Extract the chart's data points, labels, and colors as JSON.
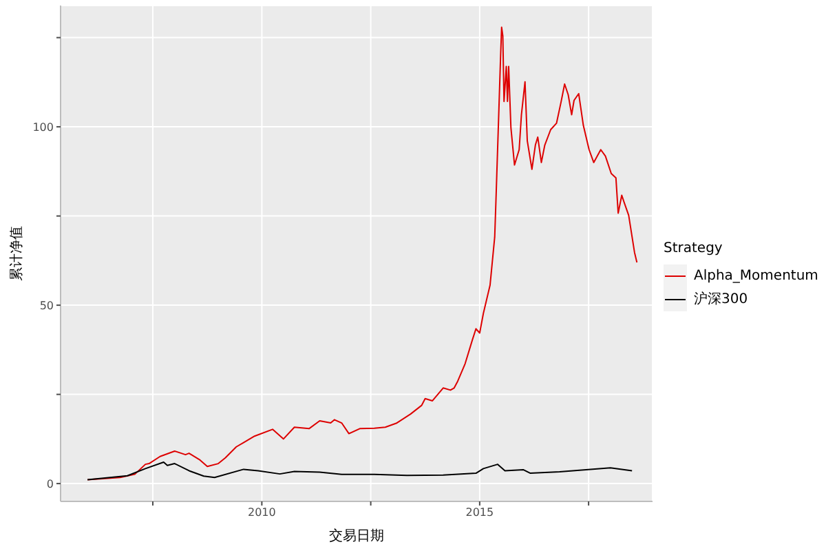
{
  "chart_data": {
    "type": "line",
    "xlabel": "交易日期",
    "ylabel": "累计净值",
    "legend_title": "Strategy",
    "legend": "right",
    "grid": true,
    "xlim": [
      "2005-05-20",
      "2018-12-20"
    ],
    "xticks": [
      {
        "value": "2007-07-02",
        "label": null
      },
      {
        "value": "2010",
        "label": "2010"
      },
      {
        "value": "2012-07-02",
        "label": null
      },
      {
        "value": "2015",
        "label": "2015"
      },
      {
        "value": "2017-07-02",
        "label": null
      }
    ],
    "ylim": [
      -5,
      134
    ],
    "yticks": [
      0,
      {
        "value": 25,
        "label": null
      },
      50,
      {
        "value": 75,
        "label": null
      },
      100,
      {
        "value": 125,
        "label": null
      }
    ],
    "series": [
      {
        "name": "Alpha_Momentum",
        "color": "#dd0000",
        "x": [
          "2006-01",
          "2006-10",
          "2007-02",
          "2007-05",
          "2007-06",
          "2007-09",
          "2008-01",
          "2008-04",
          "2008-05",
          "2008-08",
          "2008-10",
          "2009-01",
          "2009-03",
          "2009-06",
          "2009-08",
          "2009-11",
          "2010-04",
          "2010-07",
          "2010-10",
          "2011-02",
          "2011-05",
          "2011-08",
          "2011-09",
          "2011-11",
          "2012-01",
          "2012-04",
          "2012-08",
          "2012-11",
          "2013-02",
          "2013-06",
          "2013-09",
          "2013-10",
          "2013-12",
          "2014-03",
          "2014-05",
          "2014-06",
          "2014-07",
          "2014-09",
          "2014-11",
          "2014-12",
          "2015-01",
          "2015-02",
          "2015-03-29",
          "2015-05-07",
          "2015-05-17",
          "2015-06-05",
          "2015-06-25",
          "2015-07-04",
          "2015-07-14",
          "2015-07-24",
          "2015-08-12",
          "2015-08-22",
          "2015-09-01",
          "2015-09-20",
          "2015-10-20",
          "2015-11-28",
          "2015-12-17",
          "2016-01-16",
          "2016-02-04",
          "2016-03-14",
          "2016-04-12",
          "2016-05-02",
          "2016-06-01",
          "2016-06-30",
          "2016-08-18",
          "2016-10-06",
          "2016-11-14",
          "2016-12-13",
          "2017-01-12",
          "2017-02-10",
          "2017-03-02",
          "2017-04-10",
          "2017-05-19",
          "2017-07-06",
          "2017-08-14",
          "2017-10-12",
          "2017-11-20",
          "2018-01-08",
          "2018-02-16",
          "2018-03-07",
          "2018-04-06",
          "2018-04-25",
          "2018-06-03",
          "2018-07-22",
          "2018-08-11"
        ],
        "values": [
          1.1,
          1.7,
          2.6,
          5.4,
          5.6,
          7.6,
          9.1,
          8.1,
          8.5,
          6.6,
          4.8,
          5.6,
          7.2,
          10.3,
          11.5,
          13.3,
          15.2,
          12.5,
          15.8,
          15.4,
          17.6,
          17.0,
          17.9,
          17.0,
          14.0,
          15.4,
          15.5,
          15.8,
          16.9,
          19.5,
          21.9,
          23.8,
          23.2,
          26.8,
          26.2,
          26.8,
          28.7,
          33.6,
          40.3,
          43.4,
          42.2,
          47.7,
          55.6,
          69.1,
          78.9,
          98.5,
          119.4,
          127.9,
          125.5,
          107.1,
          116.9,
          107.1,
          116.9,
          99.7,
          89.3,
          93.6,
          103.4,
          112.6,
          96.1,
          88.1,
          94.9,
          97.1,
          90.0,
          94.9,
          99.2,
          101.0,
          107.1,
          112.0,
          109.0,
          103.4,
          107.4,
          109.3,
          100.4,
          93.6,
          90.0,
          93.6,
          91.8,
          86.9,
          85.7,
          75.8,
          80.8,
          78.9,
          75.2,
          64.8,
          62.0
        ]
      },
      {
        "name": "沪深300",
        "color": "#000000",
        "x": [
          "2006-01",
          "2006-12",
          "2007-05",
          "2007-10",
          "2007-11",
          "2008-01",
          "2008-05",
          "2008-09",
          "2008-12",
          "2009-08",
          "2009-12",
          "2010-06",
          "2010-10",
          "2011-05",
          "2011-11",
          "2012-08",
          "2013-05",
          "2014-03",
          "2014-12",
          "2015-02",
          "2015-06",
          "2015-08",
          "2016-01",
          "2016-03",
          "2016-11",
          "2018-01",
          "2018-07"
        ],
        "values": [
          1.1,
          2.2,
          4.2,
          6.0,
          5.1,
          5.6,
          3.6,
          2.1,
          1.7,
          4.0,
          3.6,
          2.7,
          3.4,
          3.2,
          2.6,
          2.6,
          2.3,
          2.4,
          2.9,
          4.2,
          5.4,
          3.6,
          3.9,
          2.9,
          3.3,
          4.4,
          3.6
        ]
      }
    ]
  }
}
